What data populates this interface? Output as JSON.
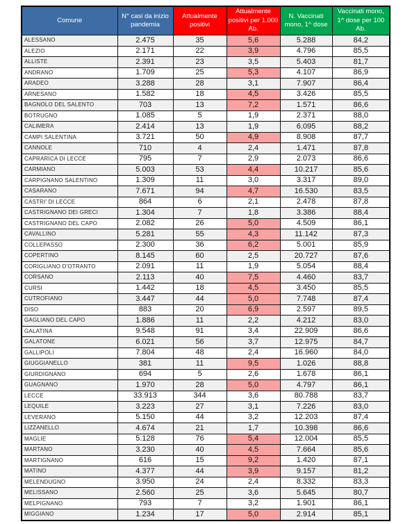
{
  "table": {
    "columns": [
      {
        "key": "comune",
        "label": "Comune",
        "header_color": "#3e6da6"
      },
      {
        "key": "casi",
        "label": "N° casi da inizio pandemia",
        "header_color": "#3e6da6"
      },
      {
        "key": "positivi",
        "label": "Attualmente positivi",
        "header_color": "#ff0000"
      },
      {
        "key": "per_1000",
        "label": "Attualmente positivi per 1.000 Ab.",
        "header_color": "#ff0000"
      },
      {
        "key": "vaccinati",
        "label": "N. Vaccinati mono, 1^ dose",
        "header_color": "#00a651"
      },
      {
        "key": "per_100",
        "label": "Vaccinati mono, 1^ dose per 100 Ab.",
        "header_color": "#00a651"
      }
    ],
    "highlight": {
      "column": "per_1000",
      "threshold": 3.9,
      "color": "#f8a3a2"
    },
    "rows": [
      {
        "comune": "ALESSANO",
        "casi": "2.475",
        "positivi": "35",
        "per_1000": "5,6",
        "vaccinati": "5.288",
        "per_100": "84,2"
      },
      {
        "comune": "ALEZIO",
        "casi": "2.171",
        "positivi": "22",
        "per_1000": "3,9",
        "vaccinati": "4.796",
        "per_100": "85,5"
      },
      {
        "comune": "ALLISTE",
        "casi": "2.391",
        "positivi": "23",
        "per_1000": "3,5",
        "vaccinati": "5.403",
        "per_100": "81,7"
      },
      {
        "comune": "ANDRANO",
        "casi": "1.709",
        "positivi": "25",
        "per_1000": "5,3",
        "vaccinati": "4.107",
        "per_100": "86,9"
      },
      {
        "comune": "ARADEO",
        "casi": "3.288",
        "positivi": "28",
        "per_1000": "3,1",
        "vaccinati": "7.907",
        "per_100": "86,4"
      },
      {
        "comune": "ARNESANO",
        "casi": "1.582",
        "positivi": "18",
        "per_1000": "4,5",
        "vaccinati": "3.426",
        "per_100": "85,5"
      },
      {
        "comune": "BAGNOLO DEL SALENTO",
        "casi": "703",
        "positivi": "13",
        "per_1000": "7,2",
        "vaccinati": "1.571",
        "per_100": "86,6"
      },
      {
        "comune": "BOTRUGNO",
        "casi": "1.085",
        "positivi": "5",
        "per_1000": "1,9",
        "vaccinati": "2.371",
        "per_100": "88,0"
      },
      {
        "comune": "CALIMERA",
        "casi": "2.414",
        "positivi": "13",
        "per_1000": "1,9",
        "vaccinati": "6.095",
        "per_100": "88,2"
      },
      {
        "comune": "CAMPI SALENTINA",
        "casi": "3.721",
        "positivi": "50",
        "per_1000": "4,9",
        "vaccinati": "8.908",
        "per_100": "87,7"
      },
      {
        "comune": "CANNOLE",
        "casi": "710",
        "positivi": "4",
        "per_1000": "2,4",
        "vaccinati": "1.471",
        "per_100": "87,8"
      },
      {
        "comune": "CAPRARICA DI LECCE",
        "casi": "795",
        "positivi": "7",
        "per_1000": "2,9",
        "vaccinati": "2.073",
        "per_100": "86,6"
      },
      {
        "comune": "CARMIANO",
        "casi": "5.003",
        "positivi": "53",
        "per_1000": "4,4",
        "vaccinati": "10.217",
        "per_100": "85,6"
      },
      {
        "comune": "CARPIGNANO SALENTINO",
        "casi": "1.309",
        "positivi": "11",
        "per_1000": "3,0",
        "vaccinati": "3.317",
        "per_100": "89,0"
      },
      {
        "comune": "CASARANO",
        "casi": "7.671",
        "positivi": "94",
        "per_1000": "4,7",
        "vaccinati": "16.530",
        "per_100": "83,5"
      },
      {
        "comune": "CASTRI' DI LECCE",
        "casi": "864",
        "positivi": "6",
        "per_1000": "2,1",
        "vaccinati": "2.478",
        "per_100": "87,8"
      },
      {
        "comune": "CASTRIGNANO DEI GRECI",
        "casi": "1.304",
        "positivi": "7",
        "per_1000": "1,8",
        "vaccinati": "3.386",
        "per_100": "88,4"
      },
      {
        "comune": "CASTRIGNANO DEL CAPO",
        "casi": "2.082",
        "positivi": "26",
        "per_1000": "5,0",
        "vaccinati": "4.509",
        "per_100": "86,1"
      },
      {
        "comune": "CAVALLINO",
        "casi": "5.281",
        "positivi": "55",
        "per_1000": "4,3",
        "vaccinati": "11.142",
        "per_100": "87,3"
      },
      {
        "comune": "COLLEPASSO",
        "casi": "2.300",
        "positivi": "36",
        "per_1000": "6,2",
        "vaccinati": "5.001",
        "per_100": "85,9"
      },
      {
        "comune": "COPERTINO",
        "casi": "8.145",
        "positivi": "60",
        "per_1000": "2,5",
        "vaccinati": "20.727",
        "per_100": "87,6"
      },
      {
        "comune": "CORIGLIANO D'OTRANTO",
        "casi": "2.091",
        "positivi": "11",
        "per_1000": "1,9",
        "vaccinati": "5.054",
        "per_100": "88,4"
      },
      {
        "comune": "CORSANO",
        "casi": "2.113",
        "positivi": "40",
        "per_1000": "7,5",
        "vaccinati": "4.460",
        "per_100": "83,7"
      },
      {
        "comune": "CURSI",
        "casi": "1.442",
        "positivi": "18",
        "per_1000": "4,5",
        "vaccinati": "3.450",
        "per_100": "85,5"
      },
      {
        "comune": "CUTROFIANO",
        "casi": "3.447",
        "positivi": "44",
        "per_1000": "5,0",
        "vaccinati": "7.748",
        "per_100": "87,4"
      },
      {
        "comune": "DISO",
        "casi": "883",
        "positivi": "20",
        "per_1000": "6,9",
        "vaccinati": "2.597",
        "per_100": "89,5"
      },
      {
        "comune": "GAGLIANO DEL CAPO",
        "casi": "1.886",
        "positivi": "11",
        "per_1000": "2,2",
        "vaccinati": "4.212",
        "per_100": "83,0"
      },
      {
        "comune": "GALATINA",
        "casi": "9.548",
        "positivi": "91",
        "per_1000": "3,4",
        "vaccinati": "22.909",
        "per_100": "86,6"
      },
      {
        "comune": "GALATONE",
        "casi": "6.021",
        "positivi": "56",
        "per_1000": "3,7",
        "vaccinati": "12.975",
        "per_100": "84,7"
      },
      {
        "comune": "GALLIPOLI",
        "casi": "7.804",
        "positivi": "48",
        "per_1000": "2,4",
        "vaccinati": "16.960",
        "per_100": "84,0"
      },
      {
        "comune": "GIUGGIANELLO",
        "casi": "381",
        "positivi": "11",
        "per_1000": "9,5",
        "vaccinati": "1.026",
        "per_100": "88,8"
      },
      {
        "comune": "GIURDIGNANO",
        "casi": "694",
        "positivi": "5",
        "per_1000": "2,6",
        "vaccinati": "1.678",
        "per_100": "86,1"
      },
      {
        "comune": "GUAGNANO",
        "casi": "1.970",
        "positivi": "28",
        "per_1000": "5,0",
        "vaccinati": "4.797",
        "per_100": "86,1"
      },
      {
        "comune": "LECCE",
        "casi": "33.913",
        "positivi": "344",
        "per_1000": "3,6",
        "vaccinati": "80.788",
        "per_100": "83,7"
      },
      {
        "comune": "LEQUILE",
        "casi": "3.223",
        "positivi": "27",
        "per_1000": "3,1",
        "vaccinati": "7.226",
        "per_100": "83,0"
      },
      {
        "comune": "LEVERANO",
        "casi": "5.150",
        "positivi": "44",
        "per_1000": "3,2",
        "vaccinati": "12.203",
        "per_100": "87,4"
      },
      {
        "comune": "LIZZANELLO",
        "casi": "4.674",
        "positivi": "21",
        "per_1000": "1,7",
        "vaccinati": "10.398",
        "per_100": "86,6"
      },
      {
        "comune": "MAGLIE",
        "casi": "5.128",
        "positivi": "76",
        "per_1000": "5,4",
        "vaccinati": "12.004",
        "per_100": "85,5"
      },
      {
        "comune": "MARTANO",
        "casi": "3.230",
        "positivi": "40",
        "per_1000": "4,5",
        "vaccinati": "7.664",
        "per_100": "85,6"
      },
      {
        "comune": "MARTIGNANO",
        "casi": "616",
        "positivi": "15",
        "per_1000": "9,2",
        "vaccinati": "1.420",
        "per_100": "87,1"
      },
      {
        "comune": "MATINO",
        "casi": "4.377",
        "positivi": "44",
        "per_1000": "3,9",
        "vaccinati": "9.157",
        "per_100": "81,2"
      },
      {
        "comune": "MELENDUGNO",
        "casi": "3.950",
        "positivi": "24",
        "per_1000": "2,4",
        "vaccinati": "8.332",
        "per_100": "83,3"
      },
      {
        "comune": "MELISSANO",
        "casi": "2.560",
        "positivi": "25",
        "per_1000": "3,6",
        "vaccinati": "5.645",
        "per_100": "80,7"
      },
      {
        "comune": "MELPIGNANO",
        "casi": "793",
        "positivi": "7",
        "per_1000": "3,2",
        "vaccinati": "1.901",
        "per_100": "86,1"
      },
      {
        "comune": "MIGGIANO",
        "casi": "1.234",
        "positivi": "17",
        "per_1000": "5,0",
        "vaccinati": "2.914",
        "per_100": "85,1"
      }
    ]
  }
}
